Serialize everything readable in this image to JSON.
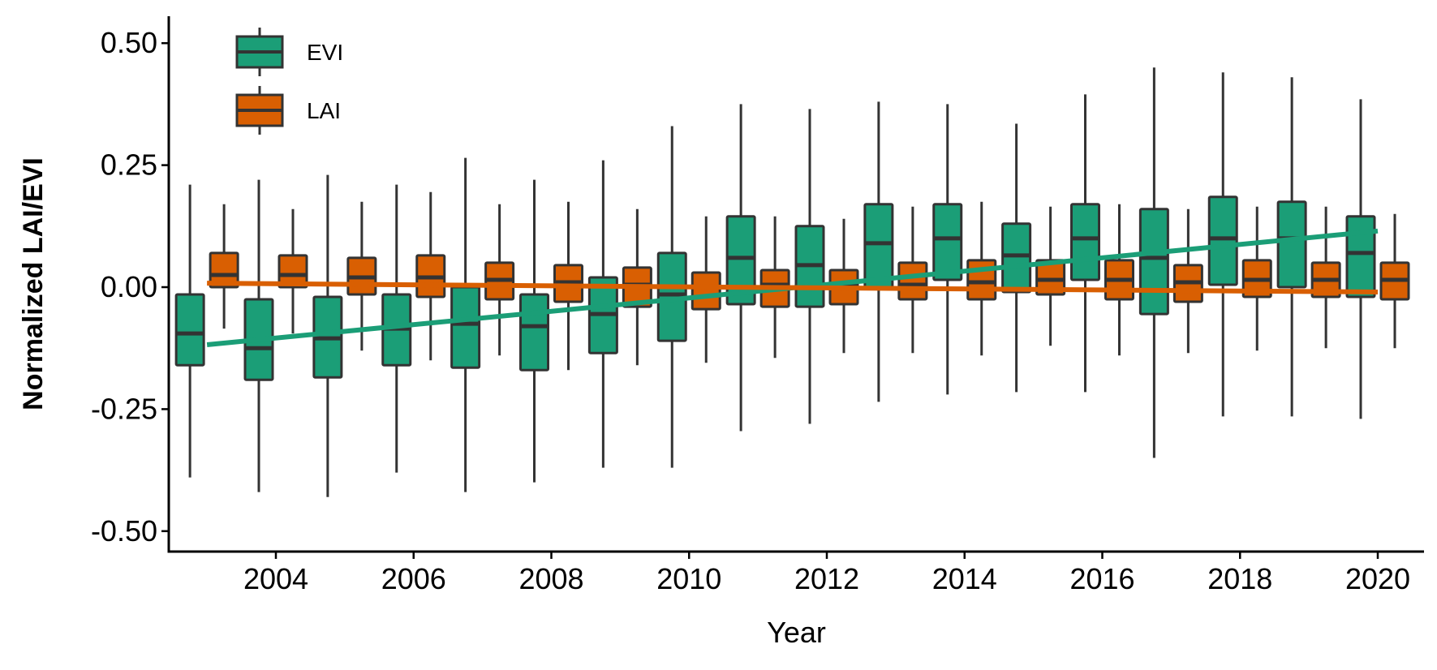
{
  "chart_data": {
    "type": "box",
    "title": "",
    "xlabel": "Year",
    "ylabel": "Normalized LAI/EVI",
    "xlim": [
      2002.2,
      2020.6
    ],
    "ylim": [
      -0.55,
      0.55
    ],
    "x_ticks": [
      "2004",
      "2006",
      "2008",
      "2010",
      "2012",
      "2014",
      "2016",
      "2018",
      "2020"
    ],
    "y_ticks": [
      "0.50",
      "0.25",
      "0.00",
      "-0.25",
      "-0.50"
    ],
    "grid": false,
    "legend_position": "top-left",
    "series": [
      {
        "name": "EVI",
        "color": "#1b9e77",
        "boxes": [
          {
            "year": 2003,
            "min": -0.39,
            "q1": -0.16,
            "median": -0.095,
            "q3": -0.015,
            "max": 0.21
          },
          {
            "year": 2004,
            "min": -0.42,
            "q1": -0.19,
            "median": -0.125,
            "q3": -0.025,
            "max": 0.22
          },
          {
            "year": 2005,
            "min": -0.43,
            "q1": -0.185,
            "median": -0.105,
            "q3": -0.02,
            "max": 0.23
          },
          {
            "year": 2006,
            "min": -0.38,
            "q1": -0.16,
            "median": -0.085,
            "q3": -0.015,
            "max": 0.21
          },
          {
            "year": 2007,
            "min": -0.42,
            "q1": -0.165,
            "median": -0.075,
            "q3": 0.0,
            "max": 0.265
          },
          {
            "year": 2008,
            "min": -0.4,
            "q1": -0.17,
            "median": -0.08,
            "q3": -0.015,
            "max": 0.22
          },
          {
            "year": 2009,
            "min": -0.37,
            "q1": -0.135,
            "median": -0.055,
            "q3": 0.02,
            "max": 0.26
          },
          {
            "year": 2010,
            "min": -0.37,
            "q1": -0.11,
            "median": -0.015,
            "q3": 0.07,
            "max": 0.33
          },
          {
            "year": 2011,
            "min": -0.295,
            "q1": -0.035,
            "median": 0.06,
            "q3": 0.145,
            "max": 0.375
          },
          {
            "year": 2012,
            "min": -0.28,
            "q1": -0.04,
            "median": 0.045,
            "q3": 0.125,
            "max": 0.365
          },
          {
            "year": 2013,
            "min": -0.235,
            "q1": 0.0,
            "median": 0.09,
            "q3": 0.17,
            "max": 0.38
          },
          {
            "year": 2014,
            "min": -0.22,
            "q1": 0.015,
            "median": 0.1,
            "q3": 0.17,
            "max": 0.375
          },
          {
            "year": 2015,
            "min": -0.215,
            "q1": -0.01,
            "median": 0.065,
            "q3": 0.13,
            "max": 0.335
          },
          {
            "year": 2016,
            "min": -0.215,
            "q1": 0.015,
            "median": 0.1,
            "q3": 0.17,
            "max": 0.395
          },
          {
            "year": 2017,
            "min": -0.35,
            "q1": -0.055,
            "median": 0.06,
            "q3": 0.16,
            "max": 0.45
          },
          {
            "year": 2018,
            "min": -0.265,
            "q1": 0.005,
            "median": 0.1,
            "q3": 0.185,
            "max": 0.44
          },
          {
            "year": 2019,
            "min": -0.265,
            "q1": 0.0,
            "median": 0.1,
            "q3": 0.175,
            "max": 0.43
          },
          {
            "year": 2020,
            "min": -0.27,
            "q1": -0.02,
            "median": 0.07,
            "q3": 0.145,
            "max": 0.385
          }
        ],
        "trend": {
          "from": [
            2003,
            -0.118
          ],
          "to": [
            2020,
            0.115
          ]
        }
      },
      {
        "name": "LAI",
        "color": "#d95f02",
        "boxes": [
          {
            "year": 2003,
            "min": -0.085,
            "q1": 0.0,
            "median": 0.025,
            "q3": 0.07,
            "max": 0.17
          },
          {
            "year": 2004,
            "min": -0.095,
            "q1": 0.0,
            "median": 0.025,
            "q3": 0.065,
            "max": 0.16
          },
          {
            "year": 2005,
            "min": -0.13,
            "q1": -0.015,
            "median": 0.02,
            "q3": 0.06,
            "max": 0.175
          },
          {
            "year": 2006,
            "min": -0.15,
            "q1": -0.02,
            "median": 0.02,
            "q3": 0.065,
            "max": 0.195
          },
          {
            "year": 2007,
            "min": -0.14,
            "q1": -0.025,
            "median": 0.015,
            "q3": 0.05,
            "max": 0.17
          },
          {
            "year": 2008,
            "min": -0.17,
            "q1": -0.03,
            "median": 0.01,
            "q3": 0.045,
            "max": 0.175
          },
          {
            "year": 2009,
            "min": -0.16,
            "q1": -0.04,
            "median": 0.005,
            "q3": 0.04,
            "max": 0.16
          },
          {
            "year": 2010,
            "min": -0.155,
            "q1": -0.045,
            "median": 0.0,
            "q3": 0.03,
            "max": 0.145
          },
          {
            "year": 2011,
            "min": -0.145,
            "q1": -0.04,
            "median": 0.005,
            "q3": 0.035,
            "max": 0.145
          },
          {
            "year": 2012,
            "min": -0.135,
            "q1": -0.035,
            "median": 0.005,
            "q3": 0.035,
            "max": 0.14
          },
          {
            "year": 2013,
            "min": -0.135,
            "q1": -0.025,
            "median": 0.005,
            "q3": 0.05,
            "max": 0.165
          },
          {
            "year": 2014,
            "min": -0.14,
            "q1": -0.025,
            "median": 0.01,
            "q3": 0.055,
            "max": 0.175
          },
          {
            "year": 2015,
            "min": -0.12,
            "q1": -0.015,
            "median": 0.015,
            "q3": 0.055,
            "max": 0.165
          },
          {
            "year": 2016,
            "min": -0.14,
            "q1": -0.025,
            "median": 0.015,
            "q3": 0.055,
            "max": 0.17
          },
          {
            "year": 2017,
            "min": -0.135,
            "q1": -0.03,
            "median": 0.01,
            "q3": 0.045,
            "max": 0.16
          },
          {
            "year": 2018,
            "min": -0.13,
            "q1": -0.02,
            "median": 0.015,
            "q3": 0.055,
            "max": 0.165
          },
          {
            "year": 2019,
            "min": -0.125,
            "q1": -0.02,
            "median": 0.015,
            "q3": 0.05,
            "max": 0.165
          },
          {
            "year": 2020,
            "min": -0.125,
            "q1": -0.025,
            "median": 0.015,
            "q3": 0.05,
            "max": 0.15
          }
        ],
        "trend": {
          "from": [
            2003,
            0.008
          ],
          "to": [
            2020,
            -0.01
          ]
        }
      }
    ]
  }
}
